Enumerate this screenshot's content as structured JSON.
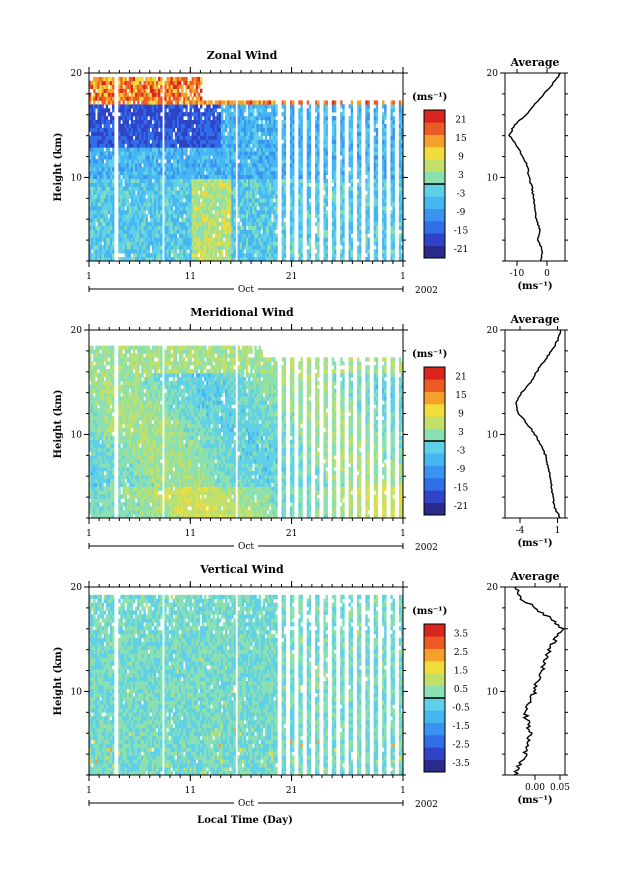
{
  "figure": {
    "xlabel": "Local Time (Day)",
    "month_label": "Oct",
    "year_label": "2002",
    "unit_label": "(ms⁻¹)"
  },
  "colors": {
    "palette": [
      "#2a2a8a",
      "#2f43c8",
      "#2f6ee8",
      "#3a93f0",
      "#45b6f2",
      "#5fd0e8",
      "#8ae0b0",
      "#c0e06a",
      "#f0dc3c",
      "#f5a02a",
      "#ee5a26",
      "#d8261e"
    ],
    "contour": "#000000"
  },
  "chart_data": [
    {
      "type": "heatmap",
      "title": "Zonal Wind",
      "ylabel": "Height (km)",
      "ylim": [
        2,
        20
      ],
      "yticks": [
        "10",
        "20"
      ],
      "xticks": [
        "1",
        "11",
        "21",
        "1"
      ],
      "colorbar": {
        "ticks": [
          "21",
          "15",
          "9",
          "3",
          "-3",
          "-9",
          "-15",
          "-21"
        ],
        "range": [
          -24,
          24
        ]
      },
      "profile": {
        "title": "Average",
        "xlim": [
          -14,
          6
        ],
        "xticks": [
          "-10",
          "0"
        ],
        "xlabel": "(ms⁻¹)",
        "heights": [
          2,
          3,
          4,
          5,
          6,
          7,
          8,
          9,
          10,
          11,
          12,
          13,
          14,
          15,
          16,
          17,
          18,
          19,
          20
        ],
        "values": [
          -2,
          -1.5,
          -3,
          -2.5,
          -3.5,
          -4,
          -4.5,
          -5,
          -6,
          -6.5,
          -8,
          -10,
          -12.5,
          -11,
          -7,
          -4,
          -1,
          2,
          4.5
        ]
      }
    },
    {
      "type": "heatmap",
      "title": "Meridional Wind",
      "ylabel": "Height (km)",
      "ylim": [
        2,
        20
      ],
      "yticks": [
        "10",
        "20"
      ],
      "xticks": [
        "1",
        "11",
        "21",
        "1"
      ],
      "colorbar": {
        "ticks": [
          "21",
          "15",
          "9",
          "3",
          "-3",
          "-9",
          "-15",
          "-21"
        ],
        "range": [
          -24,
          24
        ]
      },
      "profile": {
        "title": "Average",
        "xlim": [
          -6,
          2
        ],
        "xticks": [
          "-4",
          "1"
        ],
        "xlabel": "(ms⁻¹)",
        "heights": [
          2,
          3,
          4,
          5,
          6,
          7,
          8,
          9,
          10,
          11,
          12,
          13,
          14,
          15,
          16,
          17,
          18,
          19,
          20
        ],
        "values": [
          1.4,
          0.6,
          0.4,
          0.2,
          0.0,
          -0.3,
          -0.6,
          -1.2,
          -2.0,
          -3.0,
          -4.2,
          -4.6,
          -3.8,
          -2.6,
          -1.8,
          -0.8,
          0.2,
          1.0,
          1.4
        ]
      }
    },
    {
      "type": "heatmap",
      "title": "Vertical Wind",
      "ylabel": "Height (km)",
      "ylim": [
        2,
        20
      ],
      "yticks": [
        "10",
        "20"
      ],
      "xticks": [
        "1",
        "11",
        "21",
        "1"
      ],
      "colorbar": {
        "ticks": [
          "3.5",
          "2.5",
          "1.5",
          "0.5",
          "-0.5",
          "-1.5",
          "-2.5",
          "-3.5"
        ],
        "range": [
          -4,
          4
        ]
      },
      "profile": {
        "title": "Average",
        "xlim": [
          -0.06,
          0.06
        ],
        "xticks": [
          "0.00",
          "0.05"
        ],
        "xlabel": "(ms⁻¹)",
        "heights": [
          2,
          3,
          4,
          5,
          6,
          7,
          8,
          9,
          10,
          11,
          12,
          13,
          14,
          15,
          16,
          17,
          18,
          19,
          20
        ],
        "values": [
          -0.04,
          -0.03,
          -0.02,
          -0.015,
          -0.01,
          -0.015,
          -0.02,
          -0.01,
          0.0,
          0.005,
          0.015,
          0.02,
          0.03,
          0.04,
          0.055,
          0.03,
          0.0,
          -0.03,
          -0.04
        ]
      }
    }
  ]
}
